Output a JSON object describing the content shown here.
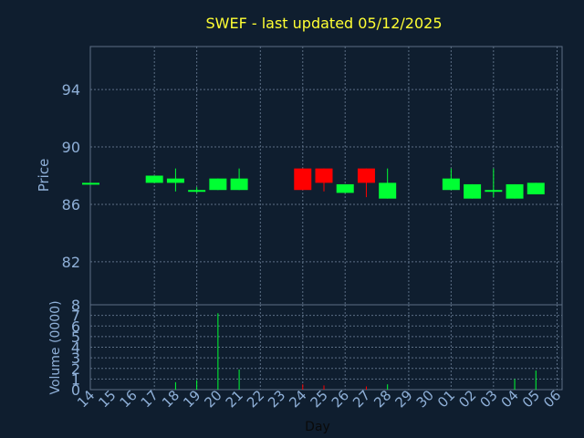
{
  "chart_data": {
    "type": "candlestick",
    "title": "SWEF - last updated 05/12/2025",
    "xlabel": "Day",
    "price_ylabel": "Price",
    "volume_ylabel": "Volume (0000)",
    "price_ylim": [
      79,
      97
    ],
    "price_ticks": [
      "82",
      "86",
      "90",
      "94"
    ],
    "volume_ylim": [
      0,
      8
    ],
    "volume_ticks": [
      "0",
      "1",
      "2",
      "3",
      "4",
      "5",
      "6",
      "7",
      "8"
    ],
    "grid": true,
    "colors": {
      "background": "#0f1e2f",
      "plot_border": "#5c6f86",
      "grid": "#5c6f86",
      "up": "#00ff33",
      "down": "#ff0000",
      "title": "#ffff33",
      "axis_text": "#8fb0d8"
    },
    "x_labels": [
      "14",
      "15",
      "16",
      "17",
      "18",
      "19",
      "20",
      "21",
      "22",
      "23",
      "24",
      "25",
      "26",
      "27",
      "28",
      "29",
      "30",
      "01",
      "02",
      "03",
      "04",
      "05",
      "06"
    ],
    "candles": [
      {
        "i": 0,
        "open": 87.5,
        "close": 87.5,
        "high": 87.5,
        "low": 87.5
      },
      {
        "i": 3,
        "open": 87.5,
        "close": 88.0,
        "high": 88.0,
        "low": 87.5
      },
      {
        "i": 4,
        "open": 87.5,
        "close": 87.8,
        "high": 88.5,
        "low": 86.9
      },
      {
        "i": 5,
        "open": 87.0,
        "close": 87.0,
        "high": 87.2,
        "low": 86.8
      },
      {
        "i": 6,
        "open": 87.0,
        "close": 87.8,
        "high": 87.8,
        "low": 87.0
      },
      {
        "i": 7,
        "open": 87.0,
        "close": 87.8,
        "high": 88.5,
        "low": 87.0
      },
      {
        "i": 10,
        "open": 88.5,
        "close": 87.0,
        "high": 88.5,
        "low": 87.0
      },
      {
        "i": 11,
        "open": 88.5,
        "close": 87.5,
        "high": 88.5,
        "low": 86.9
      },
      {
        "i": 12,
        "open": 86.8,
        "close": 87.4,
        "high": 87.4,
        "low": 86.8
      },
      {
        "i": 13,
        "open": 88.5,
        "close": 87.5,
        "high": 88.5,
        "low": 86.5
      },
      {
        "i": 14,
        "open": 86.4,
        "close": 87.5,
        "high": 88.5,
        "low": 86.4
      },
      {
        "i": 17,
        "open": 87.0,
        "close": 87.8,
        "high": 88.5,
        "low": 87.0
      },
      {
        "i": 18,
        "open": 86.4,
        "close": 87.4,
        "high": 87.4,
        "low": 86.4
      },
      {
        "i": 19,
        "open": 87.0,
        "close": 87.0,
        "high": 88.5,
        "low": 86.5
      },
      {
        "i": 20,
        "open": 86.4,
        "close": 87.4,
        "high": 87.4,
        "low": 86.4
      },
      {
        "i": 21,
        "open": 86.7,
        "close": 87.5,
        "high": 87.5,
        "low": 86.7
      }
    ],
    "volumes": [
      {
        "i": 4,
        "value": 0.7,
        "dir": "up"
      },
      {
        "i": 5,
        "value": 0.9,
        "dir": "up"
      },
      {
        "i": 6,
        "value": 7.2,
        "dir": "up"
      },
      {
        "i": 7,
        "value": 1.9,
        "dir": "up"
      },
      {
        "i": 10,
        "value": 0.5,
        "dir": "down"
      },
      {
        "i": 11,
        "value": 0.4,
        "dir": "down"
      },
      {
        "i": 13,
        "value": 0.3,
        "dir": "down"
      },
      {
        "i": 14,
        "value": 0.5,
        "dir": "up"
      },
      {
        "i": 20,
        "value": 1.0,
        "dir": "up"
      },
      {
        "i": 21,
        "value": 1.8,
        "dir": "up"
      }
    ]
  }
}
